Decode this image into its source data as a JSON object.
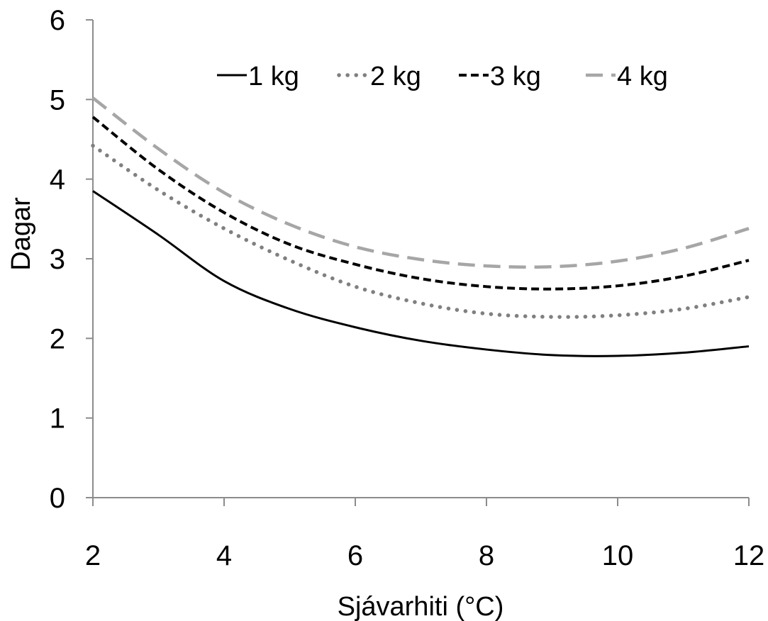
{
  "chart_data": {
    "type": "line",
    "xlabel": "Sjávarhiti (°C)",
    "ylabel": "Dagar",
    "xlim": [
      2,
      12
    ],
    "ylim": [
      0,
      6
    ],
    "xticks": [
      "2",
      "4",
      "6",
      "8",
      "10",
      "12"
    ],
    "yticks": [
      "0",
      "1",
      "2",
      "3",
      "4",
      "5",
      "6"
    ],
    "grid": false,
    "legend_position": "top",
    "x": [
      2,
      3,
      4,
      5,
      6,
      7,
      8,
      9,
      10,
      11,
      12
    ],
    "series": [
      {
        "name": "1 kg",
        "color": "#000000",
        "dash": "solid",
        "values": [
          3.85,
          3.3,
          2.72,
          2.37,
          2.14,
          1.97,
          1.86,
          1.79,
          1.78,
          1.82,
          1.9
        ]
      },
      {
        "name": "2 kg",
        "color": "#808080",
        "dash": "dotted",
        "values": [
          4.42,
          3.86,
          3.38,
          2.98,
          2.65,
          2.44,
          2.31,
          2.27,
          2.29,
          2.37,
          2.52
        ]
      },
      {
        "name": "3 kg",
        "color": "#000000",
        "dash": "dashed",
        "values": [
          4.78,
          4.12,
          3.58,
          3.18,
          2.93,
          2.75,
          2.65,
          2.62,
          2.66,
          2.78,
          2.98
        ]
      },
      {
        "name": "4 kg",
        "color": "#a6a6a6",
        "dash": "longdash",
        "values": [
          5.02,
          4.38,
          3.83,
          3.43,
          3.15,
          2.99,
          2.91,
          2.9,
          2.97,
          3.13,
          3.38
        ]
      }
    ]
  }
}
